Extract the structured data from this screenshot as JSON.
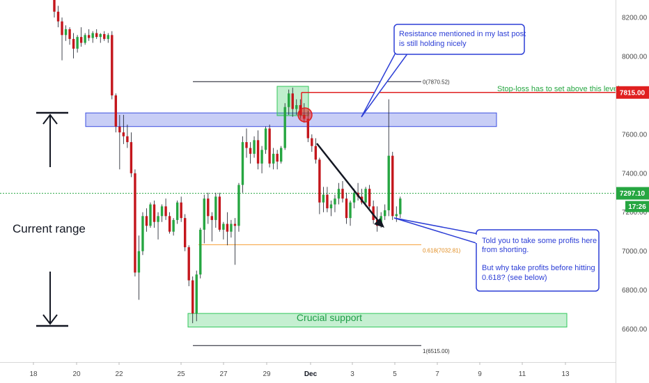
{
  "chart_data": {
    "type": "candlestick",
    "price_axis": {
      "ticks": [
        "8200.00",
        "8000.00",
        "7800.00",
        "7600.00",
        "7400.00",
        "7200.00",
        "7000.00",
        "6800.00",
        "6600.00"
      ],
      "tick_values": [
        8200,
        8000,
        7800,
        7600,
        7400,
        7200,
        7000,
        6800,
        6600
      ],
      "ylim": [
        6430,
        8290
      ]
    },
    "time_axis": {
      "labels": [
        "18",
        "20",
        "22",
        "25",
        "27",
        "29",
        "Dec",
        "3",
        "5",
        "7",
        "9",
        "11",
        "13"
      ],
      "bold_label": "Dec"
    },
    "badges": {
      "stop_loss": {
        "text": "7815.00",
        "value": 7815,
        "color": "#e02020"
      },
      "current": {
        "text": "7297.10",
        "value": 7297.1,
        "color": "#26a641"
      },
      "countdown": {
        "text": "17:26",
        "color": "#26a641"
      }
    },
    "levels": {
      "fib_0": {
        "text": "0(7870.52)",
        "value": 7870.52
      },
      "fib_618": {
        "text": "0.618(7032.81)",
        "value": 7032.81
      },
      "fib_1": {
        "text": "1(6515.00)",
        "value": 6515
      }
    },
    "zones": {
      "resistance": {
        "low": 7640,
        "high": 7710,
        "color": "#3b4fe0"
      },
      "support": {
        "low": 6610,
        "high": 6680,
        "color": "#30c75a"
      }
    },
    "annotations": {
      "stop_loss_text": "Stop-loss has to set above this level",
      "crucial_support": "Crucial support",
      "current_range": "Current range",
      "resistance_callout": [
        "Resistance mentioned in my last post",
        "is still holding nicely"
      ],
      "profits_callout": [
        "Told you to take some profits here",
        "from shorting.",
        "",
        "But why take profits before hitting",
        "0.618? (see below)"
      ]
    },
    "candles": [
      [
        8330,
        8340,
        8200,
        8230
      ],
      [
        8230,
        8260,
        8150,
        8180
      ],
      [
        8180,
        8200,
        7980,
        8110
      ],
      [
        8110,
        8160,
        8080,
        8140
      ],
      [
        8140,
        8150,
        8060,
        8090
      ],
      [
        8090,
        8120,
        7990,
        8040
      ],
      [
        8040,
        8110,
        8020,
        8100
      ],
      [
        8100,
        8150,
        8050,
        8070
      ],
      [
        8070,
        8120,
        8060,
        8110
      ],
      [
        8110,
        8140,
        8080,
        8095
      ],
      [
        8095,
        8130,
        8070,
        8120
      ],
      [
        8120,
        8140,
        8090,
        8100
      ],
      [
        8100,
        8120,
        8070,
        8115
      ],
      [
        8115,
        8130,
        8080,
        8090
      ],
      [
        8090,
        8120,
        8070,
        8110
      ],
      [
        8110,
        8130,
        7780,
        7800
      ],
      [
        7800,
        7810,
        7610,
        7640
      ],
      [
        7640,
        7700,
        7420,
        7610
      ],
      [
        7610,
        7700,
        7550,
        7590
      ],
      [
        7590,
        7650,
        7530,
        7560
      ],
      [
        7560,
        7610,
        7380,
        7400
      ],
      [
        7400,
        7420,
        6870,
        6890
      ],
      [
        6890,
        7080,
        6750,
        7000
      ],
      [
        7000,
        7200,
        6980,
        7180
      ],
      [
        7180,
        7220,
        7100,
        7130
      ],
      [
        7130,
        7250,
        7120,
        7240
      ],
      [
        7240,
        7260,
        7120,
        7150
      ],
      [
        7150,
        7200,
        7060,
        7180
      ],
      [
        7180,
        7240,
        7150,
        7230
      ],
      [
        7230,
        7270,
        7160,
        7180
      ],
      [
        7180,
        7200,
        7090,
        7100
      ],
      [
        7100,
        7170,
        7080,
        7160
      ],
      [
        7160,
        7260,
        7140,
        7250
      ],
      [
        7250,
        7280,
        7150,
        7170
      ],
      [
        7170,
        7190,
        7000,
        7020
      ],
      [
        7020,
        7030,
        6820,
        6850
      ],
      [
        6850,
        6870,
        6630,
        6680
      ],
      [
        6680,
        6900,
        6640,
        6880
      ],
      [
        6880,
        7120,
        6860,
        7110
      ],
      [
        7110,
        7290,
        7040,
        7270
      ],
      [
        7270,
        7300,
        7140,
        7180
      ],
      [
        7180,
        7200,
        7050,
        7160
      ],
      [
        7160,
        7300,
        7120,
        7280
      ],
      [
        7280,
        7300,
        7100,
        7110
      ],
      [
        7110,
        7150,
        7060,
        7140
      ],
      [
        7140,
        7200,
        7030,
        7100
      ],
      [
        7100,
        7160,
        7070,
        7140
      ],
      [
        7140,
        7170,
        6930,
        7130
      ],
      [
        7130,
        7350,
        7100,
        7340
      ],
      [
        7340,
        7590,
        7300,
        7560
      ],
      [
        7560,
        7630,
        7480,
        7530
      ],
      [
        7530,
        7560,
        7450,
        7500
      ],
      [
        7500,
        7590,
        7480,
        7570
      ],
      [
        7570,
        7620,
        7420,
        7450
      ],
      [
        7450,
        7540,
        7400,
        7520
      ],
      [
        7520,
        7640,
        7500,
        7630
      ],
      [
        7630,
        7650,
        7430,
        7450
      ],
      [
        7450,
        7530,
        7420,
        7500
      ],
      [
        7500,
        7520,
        7420,
        7460
      ],
      [
        7460,
        7540,
        7450,
        7530
      ],
      [
        7530,
        7760,
        7520,
        7740
      ],
      [
        7740,
        7830,
        7700,
        7810
      ],
      [
        7810,
        7840,
        7690,
        7730
      ],
      [
        7730,
        7780,
        7700,
        7750
      ],
      [
        7750,
        7780,
        7680,
        7700
      ],
      [
        7700,
        7760,
        7660,
        7680
      ],
      [
        7680,
        7720,
        7560,
        7580
      ],
      [
        7580,
        7600,
        7510,
        7540
      ],
      [
        7540,
        7580,
        7450,
        7470
      ],
      [
        7470,
        7480,
        7190,
        7250
      ],
      [
        7250,
        7330,
        7200,
        7290
      ],
      [
        7290,
        7330,
        7200,
        7220
      ],
      [
        7220,
        7260,
        7180,
        7240
      ],
      [
        7240,
        7290,
        7200,
        7270
      ],
      [
        7270,
        7350,
        7240,
        7320
      ],
      [
        7320,
        7360,
        7250,
        7270
      ],
      [
        7270,
        7300,
        7140,
        7170
      ],
      [
        7170,
        7260,
        7130,
        7250
      ],
      [
        7250,
        7320,
        7220,
        7300
      ],
      [
        7300,
        7350,
        7260,
        7280
      ],
      [
        7280,
        7320,
        7240,
        7250
      ],
      [
        7250,
        7330,
        7230,
        7320
      ],
      [
        7320,
        7340,
        7220,
        7230
      ],
      [
        7230,
        7260,
        7140,
        7160
      ],
      [
        7160,
        7230,
        7100,
        7130
      ],
      [
        7130,
        7200,
        7120,
        7180
      ],
      [
        7180,
        7240,
        7160,
        7210
      ],
      [
        7210,
        7780,
        7180,
        7490
      ],
      [
        7490,
        7510,
        7160,
        7180
      ],
      [
        7180,
        7230,
        7150,
        7190
      ],
      [
        7190,
        7280,
        7170,
        7270
      ]
    ]
  }
}
